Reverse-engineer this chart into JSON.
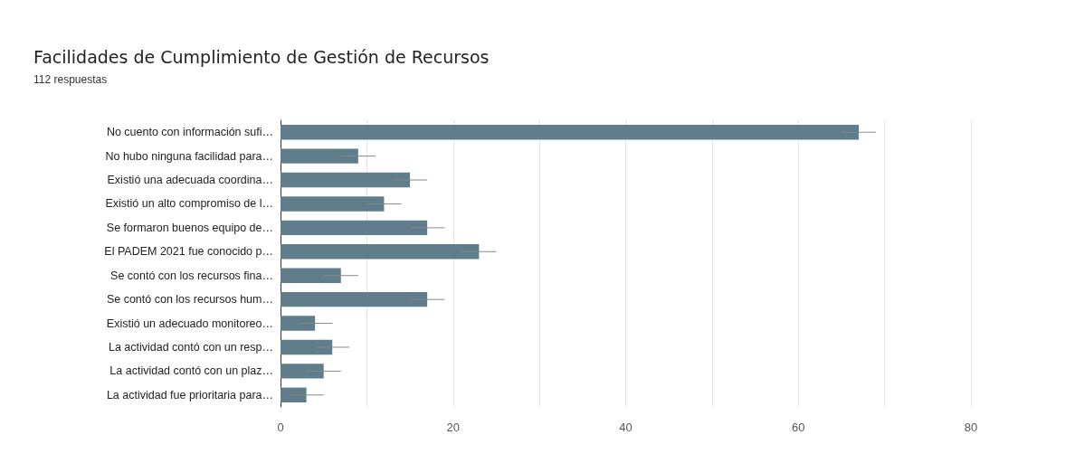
{
  "chart_data": {
    "type": "bar",
    "orientation": "horizontal",
    "title": "Facilidades de Cumplimiento de Gestión de Recursos",
    "subtitle": "112 respuestas",
    "categories": [
      "No cuento con información sufi…",
      "No hubo ninguna facilidad para…",
      "Existió una adecuada coordina…",
      "Existió un alto compromiso de l…",
      "Se formaron buenos equipo de…",
      "El PADEM 2021 fue conocido p…",
      "Se contó con los recursos fina…",
      "Se contó con los recursos hum…",
      "Existió un adecuado monitoreo…",
      "La actividad contó con un resp…",
      "La actividad contó con un plaz…",
      "La actividad fue prioritaria para…"
    ],
    "values": [
      67,
      9,
      15,
      12,
      17,
      23,
      7,
      17,
      4,
      6,
      5,
      3
    ],
    "errors": [
      2,
      2,
      2,
      2,
      2,
      2,
      2,
      2,
      2,
      2,
      2,
      2
    ],
    "color": "#5f7d8a",
    "xlim": [
      0,
      80
    ],
    "xticks": [
      0,
      {
        "value": 10,
        "label": null
      },
      20,
      {
        "value": 30,
        "label": null
      },
      40,
      {
        "value": 50,
        "label": null
      },
      60,
      {
        "value": 70,
        "label": null
      },
      80
    ],
    "grid": "x"
  }
}
